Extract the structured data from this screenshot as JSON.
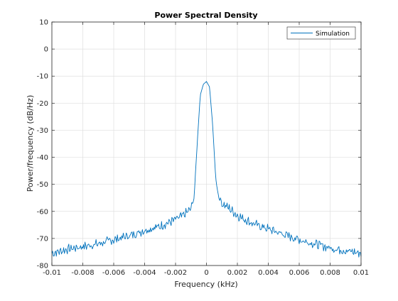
{
  "chart_data": {
    "type": "line",
    "title": "Power Spectral Density",
    "xlabel": "Frequency (kHz)",
    "ylabel": "Power/frequency (dB/Hz)",
    "xlim": [
      -0.01,
      0.01
    ],
    "ylim": [
      -80,
      10
    ],
    "xticks": [
      -0.01,
      -0.008,
      -0.006,
      -0.004,
      -0.002,
      0,
      0.002,
      0.004,
      0.006,
      0.008,
      0.01
    ],
    "xtick_labels": [
      "-0.01",
      "-0.008",
      "-0.006",
      "-0.004",
      "-0.002",
      "0",
      "0.002",
      "0.004",
      "0.006",
      "0.008",
      "0.01"
    ],
    "yticks": [
      -80,
      -70,
      -60,
      -50,
      -40,
      -30,
      -20,
      -10,
      0,
      10
    ],
    "ytick_labels": [
      "-80",
      "-70",
      "-60",
      "-50",
      "-40",
      "-30",
      "-20",
      "-10",
      "0",
      "10"
    ],
    "grid": true,
    "legend_position": "top-right",
    "series": [
      {
        "name": "Simulation",
        "color": "#0072BD",
        "x": [
          -0.01,
          -0.009,
          -0.008,
          -0.007,
          -0.006,
          -0.005,
          -0.004,
          -0.003,
          -0.002,
          -0.0015,
          -0.001,
          -0.0008,
          -0.0006,
          -0.0004,
          -0.0002,
          0,
          0.0002,
          0.0004,
          0.0006,
          0.0008,
          0.001,
          0.0015,
          0.002,
          0.003,
          0.004,
          0.005,
          0.006,
          0.007,
          0.008,
          0.009,
          0.01
        ],
        "y": [
          -75.5,
          -74,
          -73,
          -72,
          -70.5,
          -69,
          -67,
          -65.5,
          -63,
          -61.5,
          -59,
          -55,
          -35,
          -17,
          -13,
          -12,
          -14,
          -28,
          -48,
          -55,
          -57,
          -59,
          -61.5,
          -64.5,
          -66.5,
          -68.5,
          -70.5,
          -72,
          -73.5,
          -74.5,
          -75.5
        ]
      }
    ]
  }
}
